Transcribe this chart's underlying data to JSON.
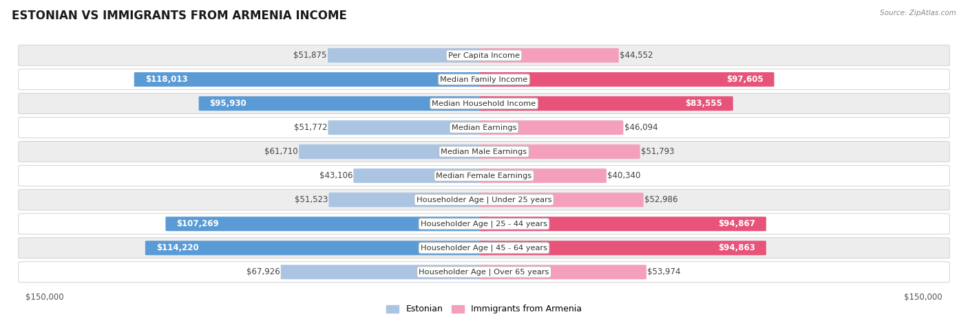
{
  "title": "ESTONIAN VS IMMIGRANTS FROM ARMENIA INCOME",
  "source": "Source: ZipAtlas.com",
  "categories": [
    "Per Capita Income",
    "Median Family Income",
    "Median Household Income",
    "Median Earnings",
    "Median Male Earnings",
    "Median Female Earnings",
    "Householder Age | Under 25 years",
    "Householder Age | 25 - 44 years",
    "Householder Age | 45 - 64 years",
    "Householder Age | Over 65 years"
  ],
  "estonian_values": [
    51875,
    118013,
    95930,
    51772,
    61710,
    43106,
    51523,
    107269,
    114220,
    67926
  ],
  "armenia_values": [
    44552,
    97605,
    83555,
    46094,
    51793,
    40340,
    52986,
    94867,
    94863,
    53974
  ],
  "estonian_labels": [
    "$51,875",
    "$118,013",
    "$95,930",
    "$51,772",
    "$61,710",
    "$43,106",
    "$51,523",
    "$107,269",
    "$114,220",
    "$67,926"
  ],
  "armenia_labels": [
    "$44,552",
    "$97,605",
    "$83,555",
    "$46,094",
    "$51,793",
    "$40,340",
    "$52,986",
    "$94,867",
    "$94,863",
    "$53,974"
  ],
  "estonian_color_light": "#aac4e2",
  "estonian_color_dark": "#5b9bd5",
  "armenia_color_light": "#f4a0bc",
  "armenia_color_dark": "#e8537a",
  "max_value": 150000,
  "bar_height": 0.58,
  "row_bg_light": "#ededee",
  "row_bg_white": "#ffffff",
  "label_fontsize": 8.5,
  "category_fontsize": 8.2,
  "title_fontsize": 12,
  "legend_fontsize": 9,
  "axis_label_fontsize": 8.5,
  "large_threshold": 80000
}
